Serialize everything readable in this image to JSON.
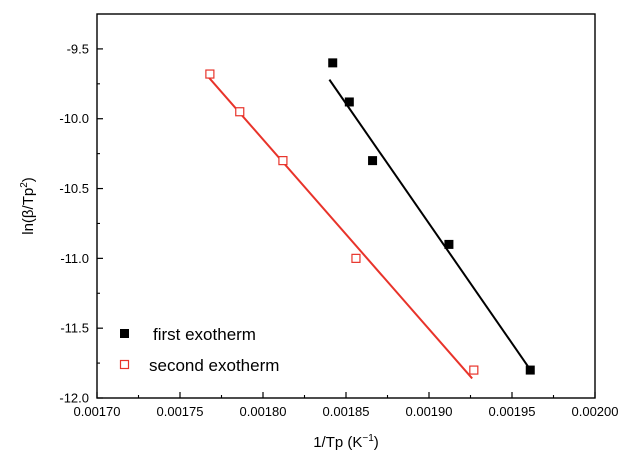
{
  "chart_data": {
    "type": "scatter",
    "title": "",
    "xlabel": "1/Tp (K⁻¹)",
    "ylabel": "ln(β/Tp²)",
    "xlim": [
      0.0017,
      0.002
    ],
    "ylim": [
      -12.0,
      -9.25
    ],
    "x_ticks": [
      "0.00170",
      "0.00175",
      "0.00180",
      "0.00185",
      "0.00190",
      "0.00195",
      "0.00200"
    ],
    "y_ticks": [
      "-9.5",
      "-10.0",
      "-10.5",
      "-11.0",
      "-11.5",
      "-12.0"
    ],
    "grid": false,
    "legend_position": "bottom-left",
    "series": [
      {
        "name": "first exotherm",
        "marker": "filled-square",
        "color": "#000000",
        "points": [
          [
            0.001842,
            -9.6
          ],
          [
            0.001852,
            -9.88
          ],
          [
            0.001866,
            -10.3
          ],
          [
            0.001912,
            -10.9
          ],
          [
            0.001961,
            -11.8
          ]
        ],
        "fit_line": [
          [
            0.00184,
            -9.72
          ],
          [
            0.00196,
            -11.78
          ]
        ]
      },
      {
        "name": "second exotherm",
        "marker": "open-square",
        "color": "#e8332a",
        "points": [
          [
            0.001768,
            -9.68
          ],
          [
            0.001786,
            -9.95
          ],
          [
            0.001812,
            -10.3
          ],
          [
            0.001856,
            -11.0
          ],
          [
            0.001927,
            -11.8
          ]
        ],
        "fit_line": [
          [
            0.001767,
            -9.7
          ],
          [
            0.001926,
            -11.86
          ]
        ]
      }
    ]
  }
}
